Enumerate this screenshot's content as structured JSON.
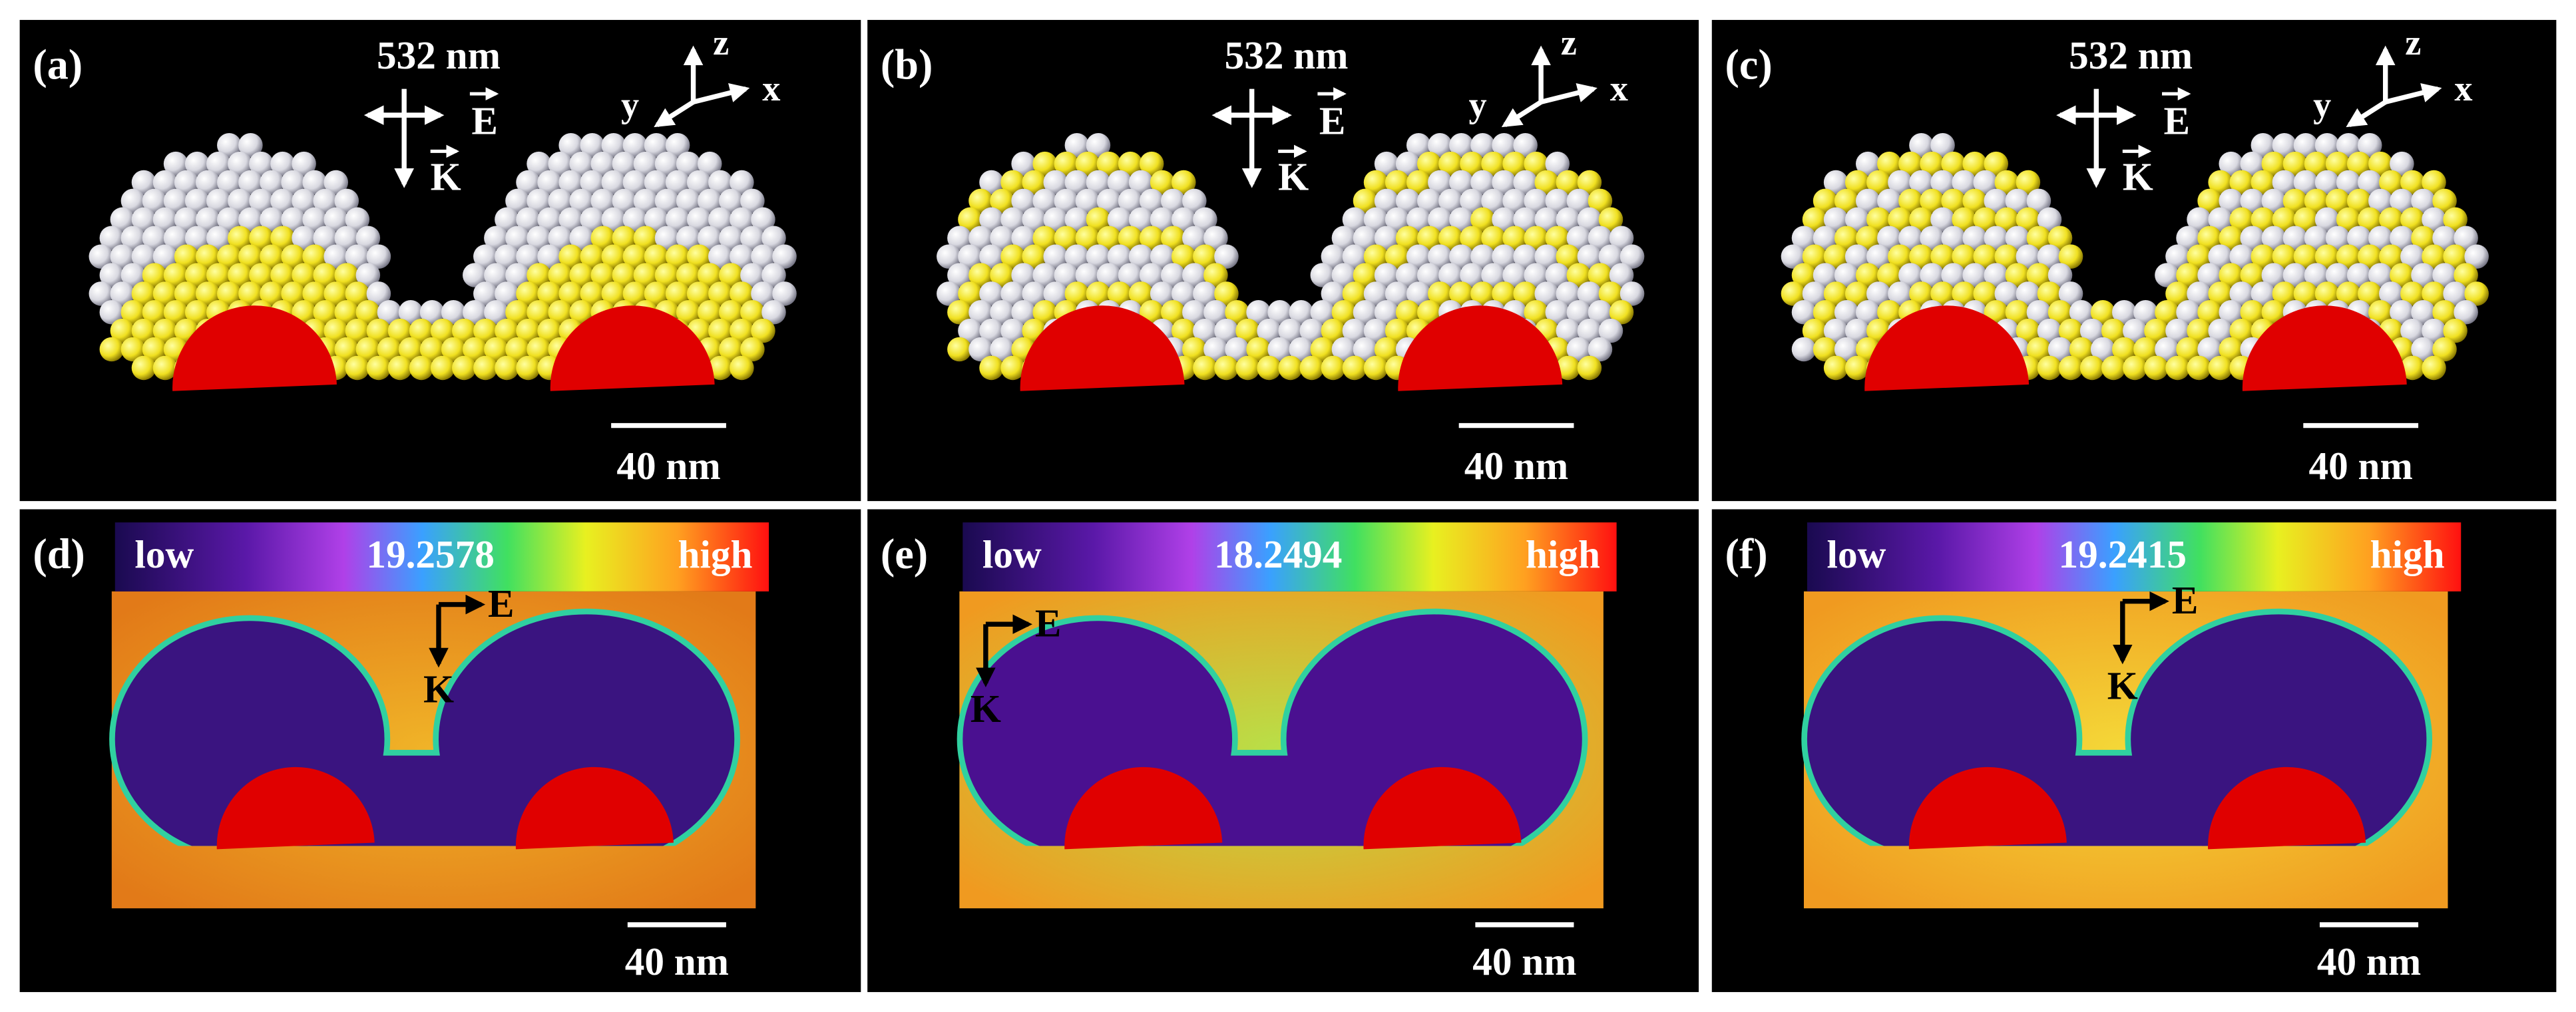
{
  "panels_top": [
    {
      "label": "(a)",
      "wavelength": "532 nm",
      "e": "E",
      "k": "K",
      "axis_z": "z",
      "axis_x": "x",
      "axis_y": "y",
      "scale": "40 nm"
    },
    {
      "label": "(b)",
      "wavelength": "532 nm",
      "e": "E",
      "k": "K",
      "axis_z": "z",
      "axis_x": "x",
      "axis_y": "y",
      "scale": "40 nm"
    },
    {
      "label": "(c)",
      "wavelength": "532 nm",
      "e": "E",
      "k": "K",
      "axis_z": "z",
      "axis_x": "x",
      "axis_y": "y",
      "scale": "40 nm"
    }
  ],
  "panels_bottom": [
    {
      "label": "(d)",
      "low": "low",
      "value": "19.2578",
      "high": "high",
      "e": "E",
      "k": "K",
      "scale": "40 nm"
    },
    {
      "label": "(e)",
      "low": "low",
      "value": "18.2494",
      "high": "high",
      "e": "E",
      "k": "K",
      "scale": "40 nm"
    },
    {
      "label": "(f)",
      "low": "low",
      "value": "19.2415",
      "high": "high",
      "e": "E",
      "k": "K",
      "scale": "40 nm"
    }
  ]
}
